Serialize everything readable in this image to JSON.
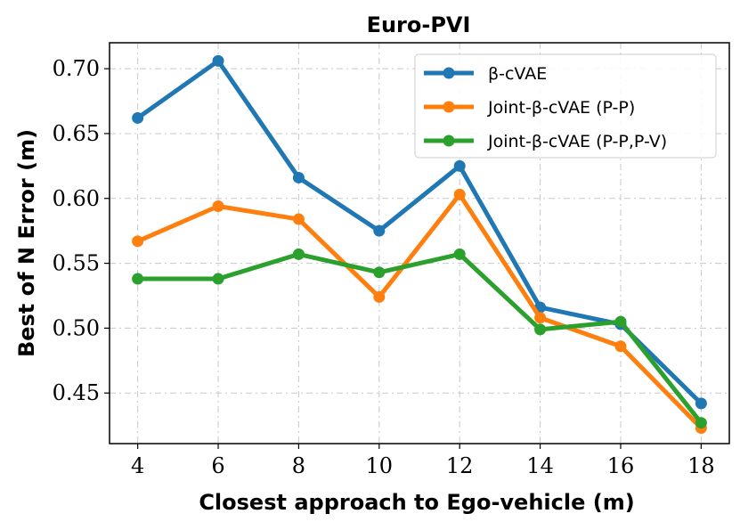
{
  "chart_data": {
    "type": "line",
    "title": "Euro-PVI",
    "xlabel": "Closest approach to Ego-vehicle (m)",
    "ylabel": "Best of N Error (m)",
    "x": [
      4,
      6,
      8,
      10,
      12,
      14,
      16,
      18
    ],
    "x_ticks": [
      "4",
      "6",
      "8",
      "10",
      "12",
      "14",
      "16",
      "18"
    ],
    "y_ticks": [
      "0.45",
      "0.50",
      "0.55",
      "0.60",
      "0.65",
      "0.70"
    ],
    "xlim": [
      3.3,
      18.7
    ],
    "ylim": [
      0.411,
      0.72
    ],
    "grid": true,
    "legend_position": "top-right",
    "series": [
      {
        "name": "β-cVAE",
        "color": "#1f77b4",
        "values": [
          0.662,
          0.706,
          0.616,
          0.575,
          0.625,
          0.516,
          0.503,
          0.442
        ]
      },
      {
        "name": "Joint-β-cVAE (P-P)",
        "color": "#ff7f0e",
        "values": [
          0.567,
          0.594,
          0.584,
          0.524,
          0.603,
          0.508,
          0.486,
          0.423
        ]
      },
      {
        "name": "Joint-β-cVAE (P-P,P-V)",
        "color": "#2ca02c",
        "values": [
          0.538,
          0.538,
          0.557,
          0.543,
          0.557,
          0.499,
          0.505,
          0.427
        ]
      }
    ]
  }
}
